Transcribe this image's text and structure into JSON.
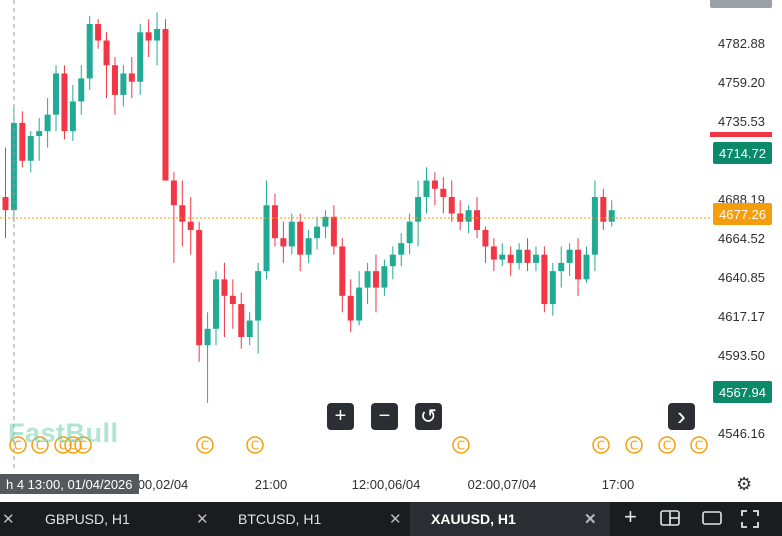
{
  "symbol": "XAUUSD",
  "timeframe": "H1",
  "logo_text": "FastBull",
  "current_price": "4677.26",
  "price_badges": [
    {
      "label": "4714.72",
      "color": "#0a8a6a",
      "value": 4714.72
    },
    {
      "label": "4567.94",
      "color": "#0a8a6a",
      "value": 4567.94
    }
  ],
  "price_axis_labels": [
    "4782.88",
    "4759.20",
    "4735.53",
    "4688.19",
    "4664.52",
    "4640.85",
    "4617.17",
    "4593.50",
    "4546.16"
  ],
  "price_axis_values": [
    4782.88,
    4759.2,
    4735.53,
    4688.19,
    4664.52,
    4640.85,
    4617.17,
    4593.5,
    4546.16
  ],
  "time_axis_labels": [
    "00,02/04",
    "21:00",
    "12:00,06/04",
    "02:00,07/04",
    "17:00"
  ],
  "crosshair_time_label": "h 4 13:00, 01/04/2026",
  "colors": {
    "up": "#22ab94",
    "down": "#f23645",
    "current_price_line": "#f59e0b",
    "current_price_badge": "#f59e0b",
    "top_badge_stripe": "#f23645"
  },
  "controls": {
    "zoom_in": "+",
    "zoom_out": "−",
    "reset": "↺",
    "next": "›"
  },
  "event_icon_glyph": "©",
  "tabs": [
    {
      "label": "",
      "partial": true
    },
    {
      "label": "GBPUSD, H1",
      "active": false
    },
    {
      "label": "BTCUSD, H1",
      "active": false
    },
    {
      "label": "XAUUSD, H1",
      "active": true
    }
  ],
  "chart_data": {
    "type": "candlestick",
    "symbol": "XAUUSD",
    "timeframe": "H1",
    "y_range": [
      4530,
      4810
    ],
    "candles": [
      [
        4690,
        4720,
        4665,
        4682
      ],
      [
        4682,
        4745,
        4675,
        4735
      ],
      [
        4735,
        4742,
        4708,
        4712
      ],
      [
        4712,
        4730,
        4705,
        4727
      ],
      [
        4727,
        4738,
        4712,
        4730
      ],
      [
        4730,
        4750,
        4720,
        4740
      ],
      [
        4740,
        4770,
        4730,
        4765
      ],
      [
        4765,
        4770,
        4725,
        4730
      ],
      [
        4730,
        4758,
        4724,
        4748
      ],
      [
        4748,
        4770,
        4740,
        4762
      ],
      [
        4762,
        4800,
        4755,
        4795
      ],
      [
        4795,
        4798,
        4780,
        4785
      ],
      [
        4785,
        4790,
        4750,
        4770
      ],
      [
        4770,
        4775,
        4740,
        4752
      ],
      [
        4752,
        4770,
        4745,
        4765
      ],
      [
        4765,
        4775,
        4750,
        4760
      ],
      [
        4760,
        4795,
        4752,
        4790
      ],
      [
        4790,
        4798,
        4775,
        4785
      ],
      [
        4785,
        4802,
        4770,
        4792
      ],
      [
        4792,
        4798,
        4700,
        4700
      ],
      [
        4700,
        4705,
        4650,
        4685
      ],
      [
        4685,
        4700,
        4660,
        4675
      ],
      [
        4675,
        4690,
        4655,
        4670
      ],
      [
        4670,
        4675,
        4590,
        4600
      ],
      [
        4600,
        4620,
        4565,
        4610
      ],
      [
        4610,
        4645,
        4600,
        4640
      ],
      [
        4640,
        4650,
        4605,
        4630
      ],
      [
        4630,
        4640,
        4610,
        4625
      ],
      [
        4625,
        4632,
        4598,
        4605
      ],
      [
        4605,
        4620,
        4600,
        4615
      ],
      [
        4615,
        4650,
        4595,
        4645
      ],
      [
        4645,
        4700,
        4640,
        4685
      ],
      [
        4685,
        4692,
        4660,
        4665
      ],
      [
        4665,
        4675,
        4650,
        4660
      ],
      [
        4660,
        4680,
        4655,
        4675
      ],
      [
        4675,
        4680,
        4645,
        4655
      ],
      [
        4655,
        4670,
        4650,
        4665
      ],
      [
        4665,
        4678,
        4658,
        4672
      ],
      [
        4672,
        4682,
        4665,
        4678
      ],
      [
        4678,
        4685,
        4655,
        4660
      ],
      [
        4660,
        4665,
        4620,
        4630
      ],
      [
        4630,
        4640,
        4608,
        4615
      ],
      [
        4615,
        4645,
        4612,
        4635
      ],
      [
        4635,
        4650,
        4625,
        4645
      ],
      [
        4645,
        4655,
        4620,
        4635
      ],
      [
        4635,
        4652,
        4630,
        4648
      ],
      [
        4648,
        4660,
        4640,
        4655
      ],
      [
        4655,
        4668,
        4648,
        4662
      ],
      [
        4662,
        4680,
        4655,
        4675
      ],
      [
        4675,
        4700,
        4660,
        4690
      ],
      [
        4690,
        4708,
        4680,
        4700
      ],
      [
        4700,
        4705,
        4685,
        4695
      ],
      [
        4695,
        4702,
        4680,
        4690
      ],
      [
        4690,
        4700,
        4675,
        4680
      ],
      [
        4680,
        4688,
        4670,
        4675
      ],
      [
        4675,
        4685,
        4668,
        4682
      ],
      [
        4682,
        4690,
        4665,
        4670
      ],
      [
        4670,
        4672,
        4650,
        4660
      ],
      [
        4660,
        4665,
        4645,
        4652
      ],
      [
        4652,
        4662,
        4648,
        4655
      ],
      [
        4655,
        4660,
        4642,
        4650
      ],
      [
        4650,
        4662,
        4646,
        4658
      ],
      [
        4658,
        4665,
        4645,
        4650
      ],
      [
        4650,
        4660,
        4645,
        4655
      ],
      [
        4655,
        4660,
        4620,
        4625
      ],
      [
        4625,
        4650,
        4618,
        4645
      ],
      [
        4645,
        4660,
        4635,
        4650
      ],
      [
        4650,
        4662,
        4642,
        4658
      ],
      [
        4658,
        4665,
        4630,
        4640
      ],
      [
        4640,
        4660,
        4638,
        4655
      ],
      [
        4655,
        4700,
        4645,
        4690
      ],
      [
        4690,
        4695,
        4670,
        4675
      ],
      [
        4675,
        4688,
        4672,
        4682
      ]
    ]
  }
}
